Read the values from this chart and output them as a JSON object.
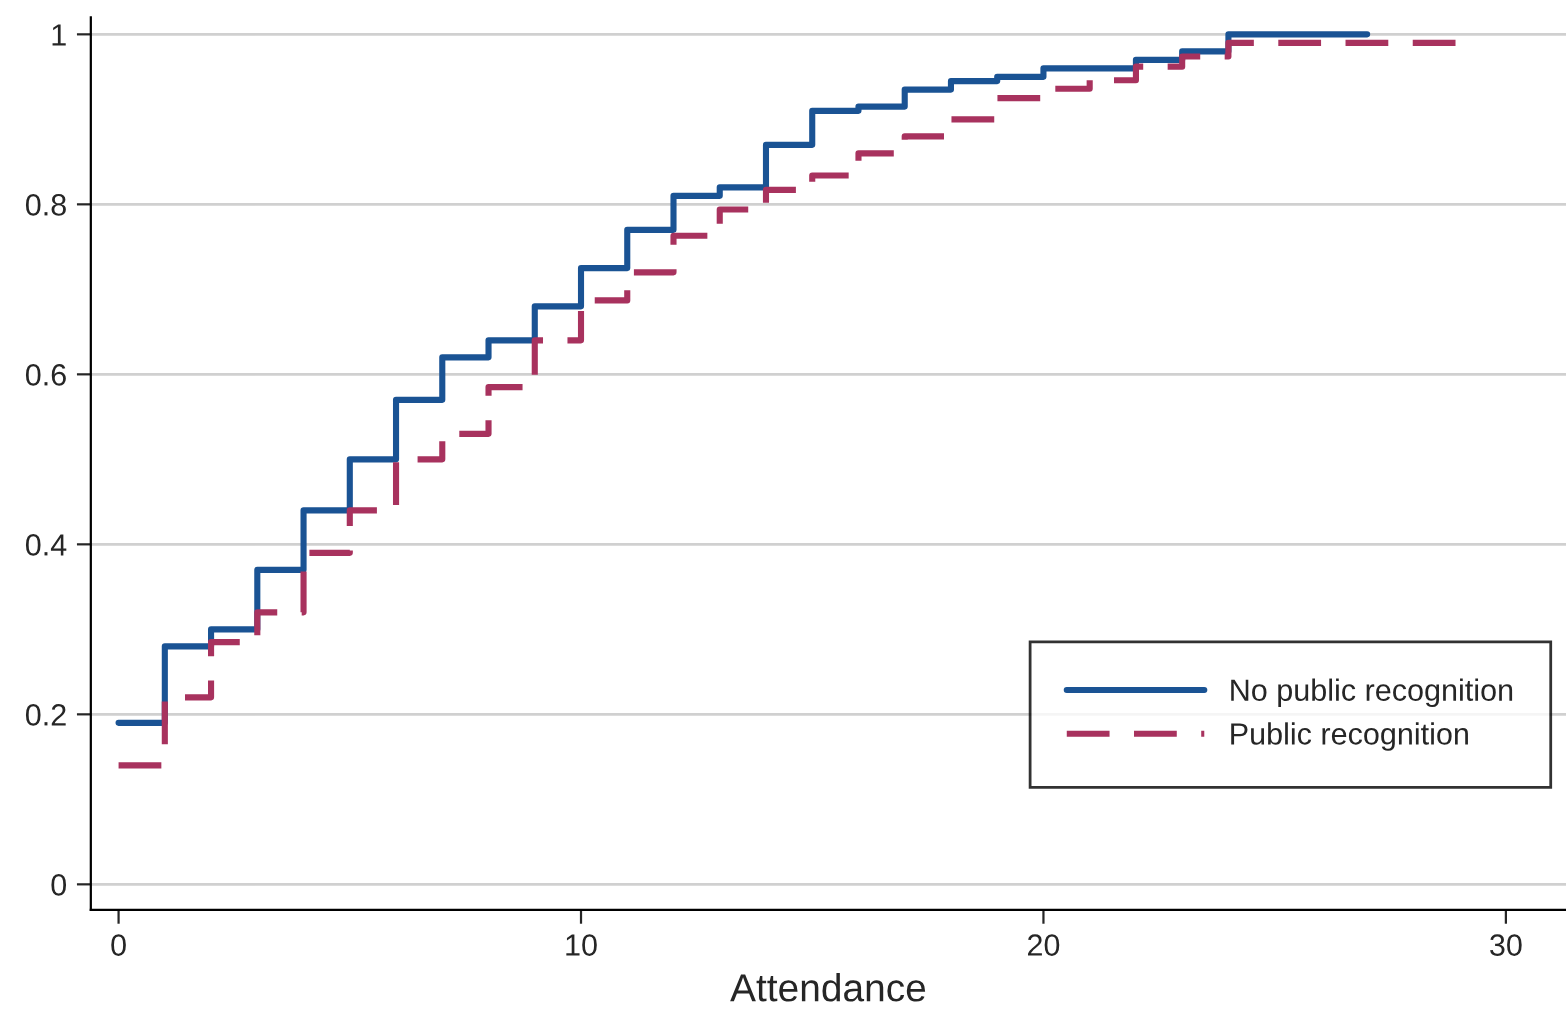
{
  "chart_data": {
    "type": "step",
    "xlabel": "Attendance",
    "xlim": [
      -0.6,
      31.3
    ],
    "xticks": [
      0,
      10,
      20,
      30
    ],
    "ylim": [
      -0.03,
      1.02
    ],
    "yticks": [
      0,
      0.2,
      0.4,
      0.6,
      0.8,
      1
    ],
    "grid": "y",
    "legend": "bottom right",
    "series": [
      {
        "name": "No public recognition",
        "color": "#1a5394",
        "line_style": "solid",
        "x": [
          0,
          1,
          2,
          3,
          4,
          5,
          6,
          7,
          8,
          9,
          10,
          11,
          12,
          13,
          14,
          15,
          16,
          17,
          18,
          19,
          20,
          21,
          22,
          23,
          24,
          25,
          26,
          27
        ],
        "values": [
          0.19,
          0.28,
          0.3,
          0.37,
          0.44,
          0.5,
          0.57,
          0.62,
          0.64,
          0.68,
          0.725,
          0.77,
          0.81,
          0.82,
          0.87,
          0.91,
          0.915,
          0.935,
          0.945,
          0.95,
          0.96,
          0.96,
          0.97,
          0.98,
          1,
          1,
          1,
          1
        ]
      },
      {
        "name": "Public recognition",
        "color": "#a8325e",
        "line_style": "dashed",
        "x": [
          0,
          1,
          2,
          3,
          4,
          5,
          6,
          7,
          8,
          9,
          10,
          11,
          12,
          13,
          14,
          15,
          16,
          17,
          18,
          19,
          20,
          21,
          22,
          23,
          24,
          25,
          26,
          27,
          28,
          29
        ],
        "values": [
          0.14,
          0.22,
          0.285,
          0.32,
          0.39,
          0.44,
          0.5,
          0.53,
          0.585,
          0.64,
          0.687,
          0.72,
          0.763,
          0.794,
          0.817,
          0.834,
          0.86,
          0.88,
          0.9,
          0.925,
          0.936,
          0.946,
          0.962,
          0.974,
          0.99,
          0.99,
          0.99,
          0.99,
          0.99,
          1
        ]
      }
    ]
  }
}
